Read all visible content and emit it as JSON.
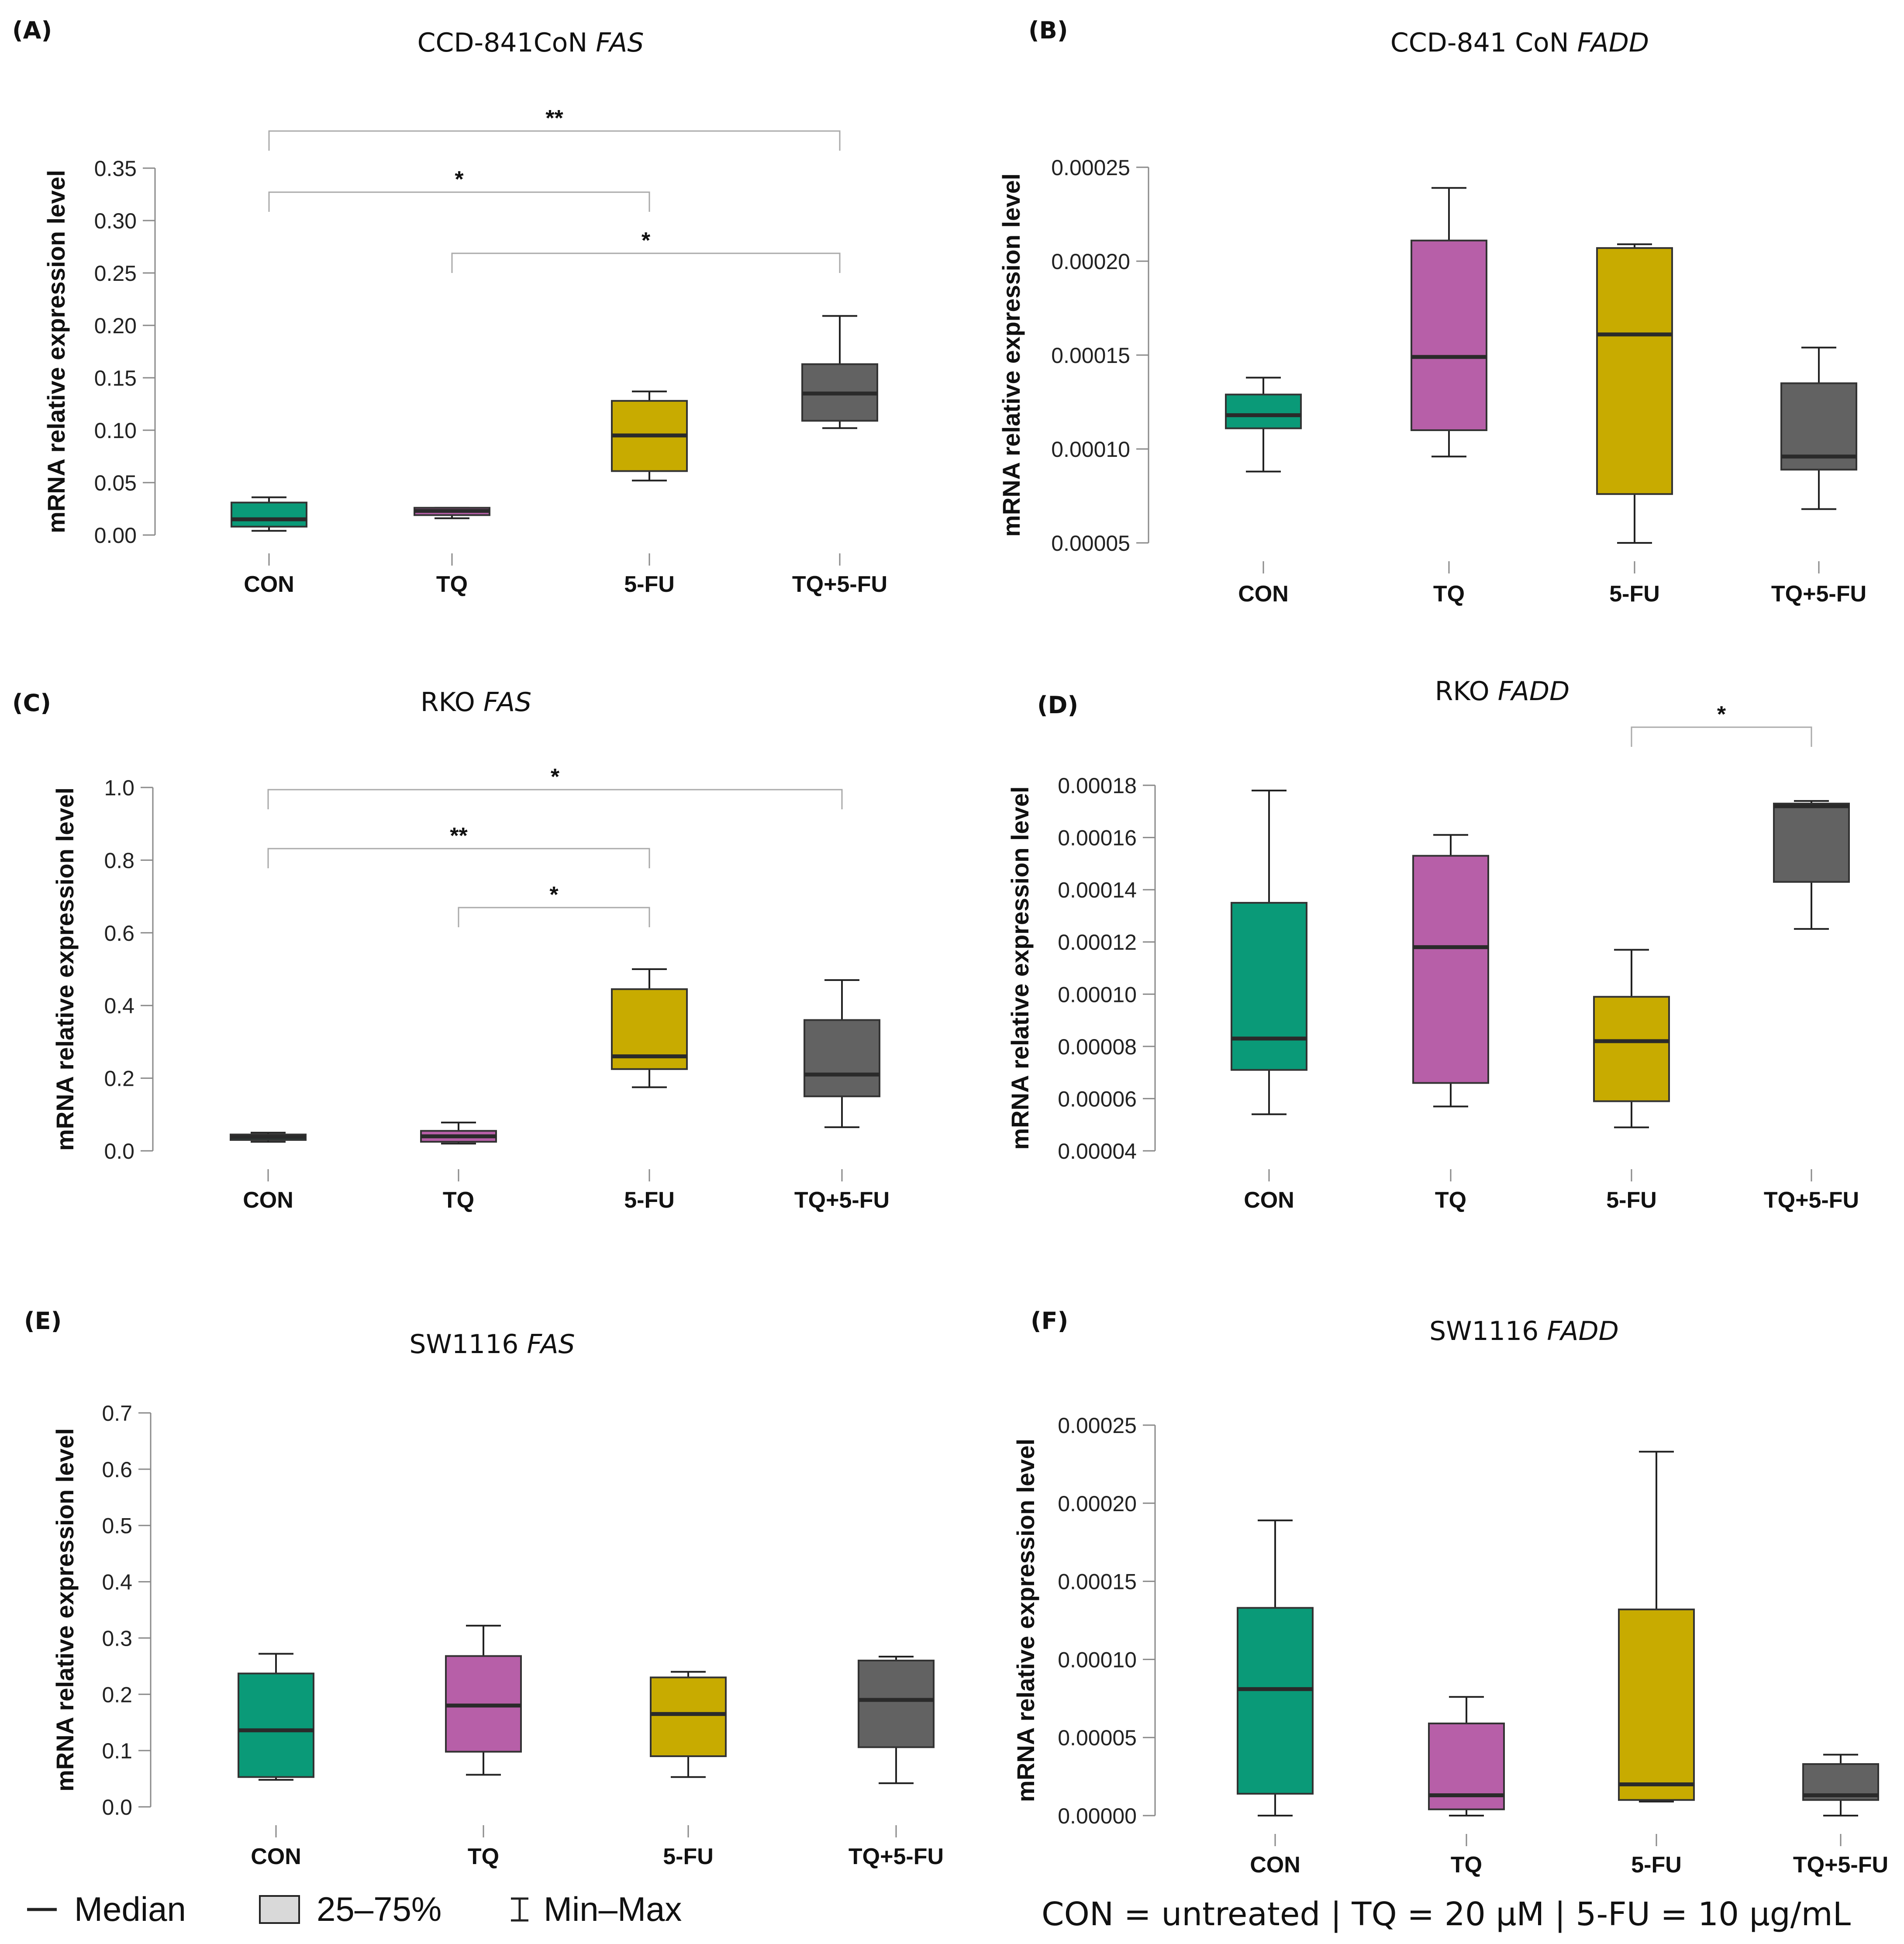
{
  "colors": {
    "CON": "#0a9a78",
    "TQ": "#b75fa8",
    "5-FU": "#c8ab00",
    "TQ+5-FU": "#626262",
    "axis": "#8a8a8a",
    "bracket": "#aaaaaa",
    "text": "#111111"
  },
  "legend": {
    "median_label": "Median",
    "iqr_label": "25–75%",
    "minmax_label": "Min–Max"
  },
  "footnote": "CON = untreated | TQ = 20 µM |  5-FU = 10 µg/mL",
  "chart_data": [
    {
      "id": "A",
      "letter": "(A)",
      "type": "box",
      "title_plain": "CCD-841CoN ",
      "title_italic": "FAS",
      "ylabel": "mRNA relative expression level",
      "categories": [
        "CON",
        "TQ",
        "5-FU",
        "TQ+5-FU"
      ],
      "ylim": [
        0,
        0.35
      ],
      "yticks": [
        "0.00",
        "0.05",
        "0.10",
        "0.15",
        "0.20",
        "0.25",
        "0.30",
        "0.35"
      ],
      "boxes": [
        {
          "min": 0.004,
          "q1": 0.008,
          "median": 0.015,
          "q3": 0.031,
          "max": 0.036
        },
        {
          "min": 0.016,
          "q1": 0.019,
          "median": 0.023,
          "q3": 0.026,
          "max": 0.026
        },
        {
          "min": 0.052,
          "q1": 0.061,
          "median": 0.095,
          "q3": 0.128,
          "max": 0.137
        },
        {
          "min": 0.102,
          "q1": 0.109,
          "median": 0.135,
          "q3": 0.163,
          "max": 0.209
        }
      ],
      "significance": [
        {
          "from": 0,
          "to": 3,
          "label": "**",
          "level": 0
        },
        {
          "from": 0,
          "to": 2,
          "label": "*",
          "level": 1
        },
        {
          "from": 1,
          "to": 3,
          "label": "*",
          "level": 2
        }
      ]
    },
    {
      "id": "B",
      "letter": "(B)",
      "type": "box",
      "title_plain": "CCD-841 CoN ",
      "title_italic": "FADD",
      "ylabel": "mRNA relative expression level",
      "categories": [
        "CON",
        "TQ",
        "5-FU",
        "TQ+5-FU"
      ],
      "ylim": [
        5e-05,
        0.00025
      ],
      "yticks": [
        "0.00005",
        "0.00010",
        "0.00015",
        "0.00020",
        "0.00025"
      ],
      "boxes": [
        {
          "min": 8.8e-05,
          "q1": 0.000111,
          "median": 0.000118,
          "q3": 0.000129,
          "max": 0.000138
        },
        {
          "min": 9.6e-05,
          "q1": 0.00011,
          "median": 0.000149,
          "q3": 0.000211,
          "max": 0.000239
        },
        {
          "min": 5e-05,
          "q1": 7.6e-05,
          "median": 0.000161,
          "q3": 0.000207,
          "max": 0.000209
        },
        {
          "min": 6.8e-05,
          "q1": 8.9e-05,
          "median": 9.6e-05,
          "q3": 0.000135,
          "max": 0.000154
        }
      ],
      "significance": []
    },
    {
      "id": "C",
      "letter": "(C)",
      "type": "box",
      "title_plain": "RKO ",
      "title_italic": "FAS",
      "ylabel": "mRNA relative expression level",
      "categories": [
        "CON",
        "TQ",
        "5-FU",
        "TQ+5-FU"
      ],
      "ylim": [
        0,
        1.0
      ],
      "yticks": [
        "0.0",
        "0.2",
        "0.4",
        "0.6",
        "0.8",
        "1.0"
      ],
      "boxes": [
        {
          "min": 0.025,
          "q1": 0.03,
          "median": 0.038,
          "q3": 0.045,
          "max": 0.05
        },
        {
          "min": 0.02,
          "q1": 0.025,
          "median": 0.04,
          "q3": 0.055,
          "max": 0.078
        },
        {
          "min": 0.175,
          "q1": 0.225,
          "median": 0.26,
          "q3": 0.445,
          "max": 0.5
        },
        {
          "min": 0.065,
          "q1": 0.15,
          "median": 0.21,
          "q3": 0.36,
          "max": 0.47
        }
      ],
      "significance": [
        {
          "from": 0,
          "to": 3,
          "label": "*",
          "level": 0
        },
        {
          "from": 0,
          "to": 2,
          "label": "**",
          "level": 1
        },
        {
          "from": 1,
          "to": 2,
          "label": "*",
          "level": 2
        }
      ]
    },
    {
      "id": "D",
      "letter": "(D)",
      "type": "box",
      "title_plain": "RKO ",
      "title_italic": "FADD",
      "ylabel": "mRNA relative expression level",
      "categories": [
        "CON",
        "TQ",
        "5-FU",
        "TQ+5-FU"
      ],
      "ylim": [
        4e-05,
        0.00018
      ],
      "yticks": [
        "0.00004",
        "0.00006",
        "0.00008",
        "0.00010",
        "0.00012",
        "0.00014",
        "0.00016",
        "0.00018"
      ],
      "boxes": [
        {
          "min": 5.4e-05,
          "q1": 7.1e-05,
          "median": 8.3e-05,
          "q3": 0.000135,
          "max": 0.000178
        },
        {
          "min": 5.7e-05,
          "q1": 6.6e-05,
          "median": 0.000118,
          "q3": 0.000153,
          "max": 0.000161
        },
        {
          "min": 4.9e-05,
          "q1": 5.9e-05,
          "median": 8.2e-05,
          "q3": 9.9e-05,
          "max": 0.000117
        },
        {
          "min": 0.000125,
          "q1": 0.000143,
          "median": 0.000172,
          "q3": 0.000173,
          "max": 0.000174
        }
      ],
      "significance": [
        {
          "from": 2,
          "to": 3,
          "label": "*",
          "level": 0
        }
      ]
    },
    {
      "id": "E",
      "letter": "(E)",
      "type": "box",
      "title_plain": "SW1116 ",
      "title_italic": "FAS",
      "ylabel": "mRNA relative expression level",
      "categories": [
        "CON",
        "TQ",
        "5-FU",
        "TQ+5-FU"
      ],
      "ylim": [
        0,
        0.7
      ],
      "yticks": [
        "0.0",
        "0.1",
        "0.2",
        "0.3",
        "0.4",
        "0.5",
        "0.6",
        "0.7"
      ],
      "boxes": [
        {
          "min": 0.048,
          "q1": 0.053,
          "median": 0.136,
          "q3": 0.237,
          "max": 0.272
        },
        {
          "min": 0.057,
          "q1": 0.098,
          "median": 0.18,
          "q3": 0.268,
          "max": 0.322
        },
        {
          "min": 0.053,
          "q1": 0.09,
          "median": 0.165,
          "q3": 0.23,
          "max": 0.24
        },
        {
          "min": 0.042,
          "q1": 0.106,
          "median": 0.19,
          "q3": 0.26,
          "max": 0.267
        }
      ],
      "significance": []
    },
    {
      "id": "F",
      "letter": "(F)",
      "type": "box",
      "title_plain": "SW1116 ",
      "title_italic": "FADD",
      "ylabel": "mRNA relative expression level",
      "categories": [
        "CON",
        "TQ",
        "5-FU",
        "TQ+5-FU"
      ],
      "ylim": [
        0,
        0.00025
      ],
      "yticks": [
        "0.00000",
        "0.00005",
        "0.00010",
        "0.00015",
        "0.00020",
        "0.00025"
      ],
      "boxes": [
        {
          "min": 0.0,
          "q1": 1.4e-05,
          "median": 8.1e-05,
          "q3": 0.000133,
          "max": 0.000189
        },
        {
          "min": 0.0,
          "q1": 4e-06,
          "median": 1.3e-05,
          "q3": 5.9e-05,
          "max": 7.6e-05
        },
        {
          "min": 9e-06,
          "q1": 1e-05,
          "median": 2e-05,
          "q3": 0.000132,
          "max": 0.000233
        },
        {
          "min": 0.0,
          "q1": 1e-05,
          "median": 1.3e-05,
          "q3": 3.3e-05,
          "max": 3.9e-05
        }
      ],
      "significance": []
    }
  ]
}
